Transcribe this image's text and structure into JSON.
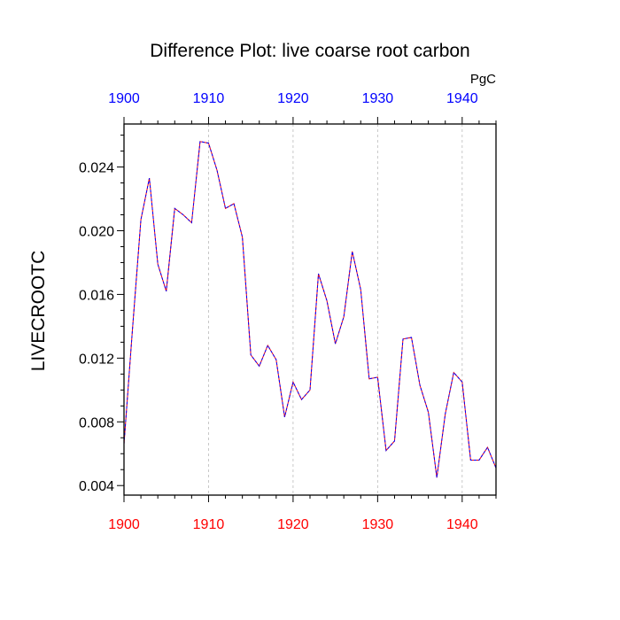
{
  "chart_data": {
    "type": "line",
    "title": "Difference Plot: live coarse root carbon",
    "units": "PgC",
    "ylabel": "LIVECROOTC",
    "xlabel": "",
    "xlim": [
      1900,
      1944
    ],
    "ylim": [
      0.0034,
      0.0267
    ],
    "x_ticks": [
      "1900",
      "1910",
      "1920",
      "1930",
      "1940"
    ],
    "y_ticks": [
      "0.004",
      "0.008",
      "0.012",
      "0.016",
      "0.020",
      "0.024"
    ],
    "grid": "vertical dashed at major x ticks",
    "colors": {
      "top_axis_labels": "#0000ff",
      "bottom_axis_labels": "#ff0000",
      "series_a": "#ff0000",
      "series_b": "#0000ff",
      "grid": "#bbbbbb"
    },
    "series": [
      {
        "name": "difference",
        "x": [
          1900,
          1901,
          1902,
          1903,
          1904,
          1905,
          1906,
          1907,
          1908,
          1909,
          1910,
          1911,
          1912,
          1913,
          1914,
          1915,
          1916,
          1917,
          1918,
          1919,
          1920,
          1921,
          1922,
          1923,
          1924,
          1925,
          1926,
          1927,
          1928,
          1929,
          1930,
          1931,
          1932,
          1933,
          1934,
          1935,
          1936,
          1937,
          1938,
          1939,
          1940,
          1941,
          1942,
          1943,
          1944
        ],
        "values": [
          0.0066,
          0.0138,
          0.0207,
          0.0233,
          0.0179,
          0.0162,
          0.0214,
          0.021,
          0.0205,
          0.0256,
          0.0255,
          0.0238,
          0.0214,
          0.0217,
          0.0196,
          0.0122,
          0.0115,
          0.0128,
          0.0119,
          0.0083,
          0.0105,
          0.0094,
          0.01,
          0.0173,
          0.0156,
          0.0129,
          0.0146,
          0.0187,
          0.0163,
          0.0107,
          0.0108,
          0.0062,
          0.0068,
          0.0132,
          0.0133,
          0.0103,
          0.0086,
          0.0045,
          0.0085,
          0.0111,
          0.0105,
          0.0056,
          0.0056,
          0.0064,
          0.0051
        ]
      }
    ]
  }
}
